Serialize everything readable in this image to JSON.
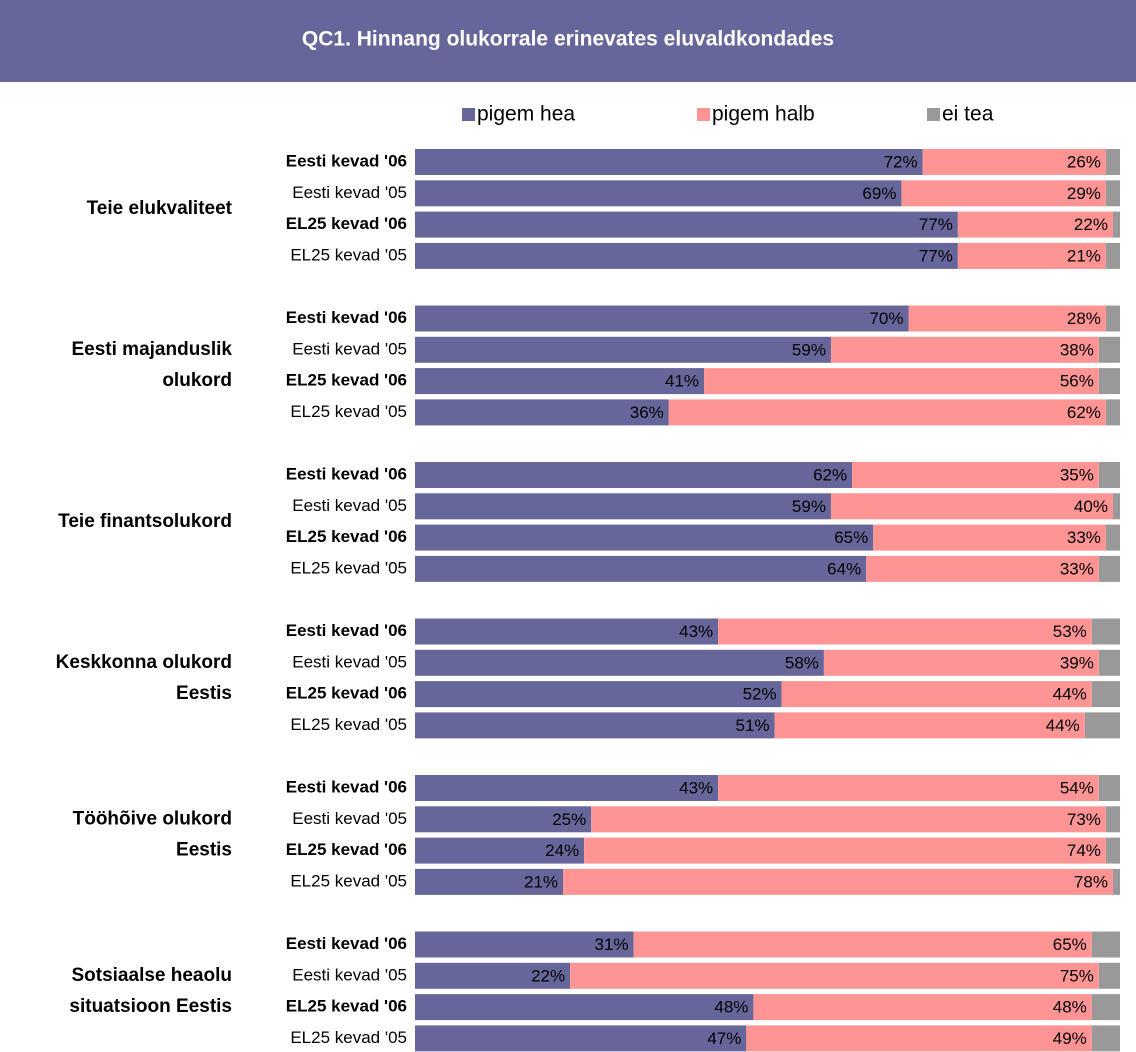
{
  "chart_data": {
    "type": "stacked_bar_horizontal",
    "title": "QC1. Hinnang olukorrale erinevates eluvaldkondades",
    "groups": [
      [
        "Teie elukvaliteet"
      ],
      [
        "Eesti majanduslik",
        "olukord"
      ],
      [
        "Teie finantsolukord"
      ],
      [
        "Keskkonna olukord",
        "Eestis"
      ],
      [
        "Tööhõive olukord",
        "Eestis"
      ],
      [
        "Sotsiaalse heaolu",
        "situatsioon Eestis"
      ]
    ],
    "categories": [
      "Eesti kevad '06",
      "Eesti kevad '05",
      "EL25 kevad '06",
      "EL25 kevad '05",
      "Eesti kevad '06",
      "Eesti kevad '05",
      "EL25 kevad '06",
      "EL25 kevad '05",
      "Eesti kevad '06",
      "Eesti kevad '05",
      "EL25 kevad '06",
      "EL25 kevad '05",
      "Eesti kevad '06",
      "Eesti kevad '05",
      "EL25 kevad '06",
      "EL25 kevad '05",
      "Eesti kevad '06",
      "Eesti kevad '05",
      "EL25 kevad '06",
      "EL25 kevad '05",
      "Eesti kevad '06",
      "Eesti kevad '05",
      "EL25 kevad '06",
      "EL25 kevad '05"
    ],
    "xlim": [
      0,
      100
    ],
    "series": [
      {
        "name": "pigem hea",
        "color": "#66669a",
        "label_color": "#ffffff",
        "values": [
          72,
          69,
          77,
          77,
          70,
          59,
          41,
          36,
          62,
          59,
          65,
          64,
          43,
          58,
          52,
          51,
          43,
          25,
          24,
          21,
          31,
          22,
          48,
          47
        ],
        "value_labels": [
          "72%",
          "69%",
          "77%",
          "77%",
          "70%",
          "59%",
          "41%",
          "36%",
          "62%",
          "59%",
          "65%",
          "64%",
          "43%",
          "58%",
          "52%",
          "51%",
          "43%",
          "25%",
          "24%",
          "21%",
          "31%",
          "22%",
          "48%",
          "47%"
        ]
      },
      {
        "name": "pigem halb",
        "color": "#ff9494",
        "label_color": "#000000",
        "values": [
          26,
          29,
          22,
          21,
          28,
          38,
          56,
          62,
          35,
          40,
          33,
          33,
          53,
          39,
          44,
          44,
          54,
          73,
          74,
          78,
          65,
          75,
          48,
          49
        ],
        "value_labels": [
          "26%",
          "29%",
          "22%",
          "21%",
          "28%",
          "38%",
          "56%",
          "62%",
          "35%",
          "40%",
          "33%",
          "33%",
          "53%",
          "39%",
          "44%",
          "44%",
          "54%",
          "73%",
          "74%",
          "78%",
          "65%",
          "75%",
          "48%",
          "49%"
        ]
      },
      {
        "name": "ei tea",
        "color": "#999999",
        "values": [
          2,
          2,
          1,
          2,
          2,
          3,
          3,
          2,
          3,
          1,
          2,
          3,
          4,
          3,
          4,
          5,
          3,
          2,
          2,
          1,
          4,
          3,
          4,
          4
        ]
      }
    ]
  }
}
